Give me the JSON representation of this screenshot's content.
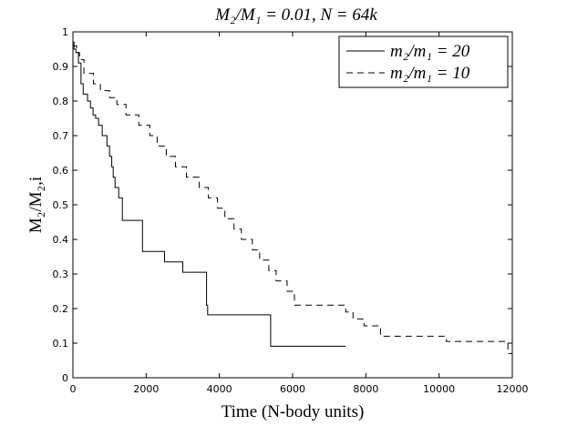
{
  "chart_data": {
    "type": "line",
    "title": "M₂/M₁ = 0.01, N = 64k",
    "xlabel": "Time (N-body units)",
    "ylabel": "M₂/M₂,i",
    "xlim": [
      0,
      12000
    ],
    "ylim": [
      0,
      1
    ],
    "xticks": [
      "0",
      "2000",
      "4000",
      "6000",
      "8000",
      "10000",
      "12000"
    ],
    "yticks": [
      "0",
      "0.1",
      "0.2",
      "0.3",
      "0.4",
      "0.5",
      "0.6",
      "0.7",
      "0.8",
      "0.9",
      "1"
    ],
    "grid": false,
    "legend_position": "top-right",
    "series": [
      {
        "name": "m₂/m₁ = 20",
        "style": "solid",
        "x": [
          0,
          30,
          80,
          150,
          220,
          280,
          400,
          480,
          550,
          620,
          700,
          800,
          930,
          1000,
          1060,
          1100,
          1150,
          1250,
          1350,
          1900,
          2500,
          3000,
          3650,
          3680,
          5400,
          7450
        ],
        "y": [
          0.97,
          0.95,
          0.94,
          0.91,
          0.85,
          0.82,
          0.8,
          0.78,
          0.76,
          0.75,
          0.73,
          0.7,
          0.67,
          0.64,
          0.61,
          0.58,
          0.55,
          0.52,
          0.455,
          0.365,
          0.335,
          0.305,
          0.21,
          0.182,
          0.091,
          0.091
        ]
      },
      {
        "name": "m₂/m₁ = 10",
        "style": "dashed",
        "x": [
          0,
          100,
          180,
          300,
          560,
          750,
          1000,
          1200,
          1450,
          1800,
          2100,
          2300,
          2550,
          2800,
          3100,
          3450,
          3700,
          3950,
          4150,
          4400,
          4600,
          4900,
          5100,
          5350,
          5550,
          5850,
          6050,
          7450,
          7650,
          7950,
          8400,
          10200,
          11880,
          12000
        ],
        "y": [
          0.96,
          0.94,
          0.92,
          0.88,
          0.85,
          0.83,
          0.81,
          0.79,
          0.76,
          0.73,
          0.7,
          0.67,
          0.64,
          0.61,
          0.58,
          0.55,
          0.52,
          0.49,
          0.46,
          0.43,
          0.4,
          0.37,
          0.34,
          0.31,
          0.28,
          0.25,
          0.21,
          0.19,
          0.17,
          0.15,
          0.12,
          0.105,
          0.07,
          0.06
        ]
      }
    ]
  }
}
